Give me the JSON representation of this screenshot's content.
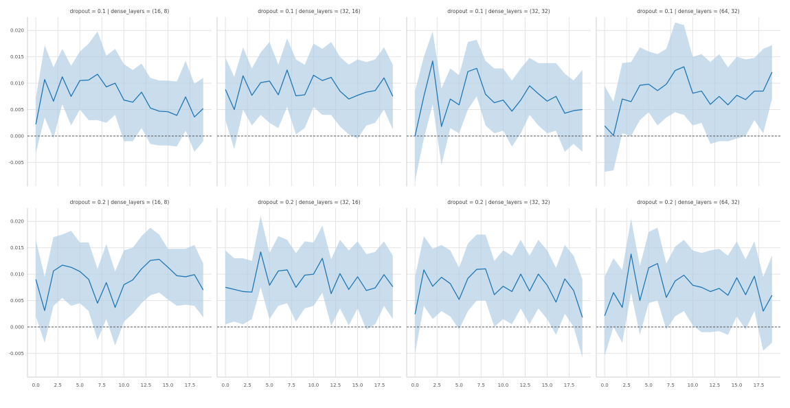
{
  "chart_data": {
    "type": "line",
    "layout": "facet-grid",
    "rows": 2,
    "cols": 4,
    "x": [
      0,
      1,
      2,
      3,
      4,
      5,
      6,
      7,
      8,
      9,
      10,
      11,
      12,
      13,
      14,
      15,
      16,
      17,
      18,
      19
    ],
    "xticks": [
      0.0,
      2.5,
      5.0,
      7.5,
      10.0,
      12.5,
      15.0,
      17.5
    ],
    "xtick_labels": [
      "0.0",
      "2.5",
      "5.0",
      "7.5",
      "10.0",
      "12.5",
      "15.0",
      "17.5"
    ],
    "yticks": [
      -0.005,
      0.0,
      0.005,
      0.01,
      0.015,
      0.02
    ],
    "ytick_labels": [
      "-0.005",
      "0.000",
      "0.005",
      "0.010",
      "0.015",
      "0.020"
    ],
    "xlim": [
      -0.95,
      19.95
    ],
    "ylim": [
      -0.0095,
      0.0225
    ],
    "grid": true,
    "reference_line": {
      "y": 0.0,
      "style": "dashed",
      "color": "#555555"
    },
    "line_color": "#1f77b4",
    "band_color": "#aecbe2",
    "panels": [
      {
        "title": "dropout = 0.1 | dense_layers = (16, 8)",
        "mean": [
          0.0022,
          0.0107,
          0.0066,
          0.0112,
          0.0075,
          0.0105,
          0.0106,
          0.0117,
          0.0093,
          0.01,
          0.0068,
          0.0064,
          0.0083,
          0.0053,
          0.0047,
          0.0046,
          0.0039,
          0.0074,
          0.0036,
          0.0052
        ],
        "lower": [
          -0.0032,
          0.0035,
          -0.0005,
          0.006,
          0.002,
          0.005,
          0.003,
          0.003,
          0.0025,
          0.004,
          -0.001,
          -0.001,
          0.0015,
          -0.0015,
          -0.0018,
          -0.0018,
          -0.002,
          0.001,
          -0.003,
          -0.001
        ],
        "upper": [
          0.0072,
          0.0172,
          0.013,
          0.0165,
          0.0133,
          0.016,
          0.0175,
          0.0198,
          0.0152,
          0.0165,
          0.0136,
          0.0125,
          0.0137,
          0.011,
          0.0105,
          0.0105,
          0.0103,
          0.0142,
          0.0099,
          0.011
        ]
      },
      {
        "title": "dropout = 0.1 | dense_layers = (32, 16)",
        "mean": [
          0.0088,
          0.005,
          0.0114,
          0.0077,
          0.0101,
          0.0104,
          0.0078,
          0.0125,
          0.0076,
          0.0078,
          0.0115,
          0.0105,
          0.0111,
          0.0085,
          0.007,
          0.0077,
          0.0083,
          0.0086,
          0.011,
          0.0075
        ],
        "lower": [
          0.003,
          -0.0025,
          0.005,
          0.002,
          0.004,
          0.0025,
          0.0015,
          0.0055,
          0.0003,
          0.0015,
          0.0055,
          0.004,
          0.004,
          0.0018,
          0.0003,
          -0.0005,
          0.002,
          0.0025,
          0.005,
          0.0012
        ],
        "upper": [
          0.0148,
          0.0112,
          0.0168,
          0.0128,
          0.0158,
          0.0178,
          0.0135,
          0.0185,
          0.0145,
          0.0135,
          0.0175,
          0.0165,
          0.0178,
          0.015,
          0.0135,
          0.0145,
          0.014,
          0.0145,
          0.0168,
          0.0135
        ]
      },
      {
        "title": "dropout = 0.1 | dense_layers = (32, 32)",
        "mean": [
          0.0,
          0.0075,
          0.0142,
          0.0018,
          0.007,
          0.0059,
          0.0122,
          0.0128,
          0.0079,
          0.0063,
          0.0068,
          0.0047,
          0.0068,
          0.0095,
          0.008,
          0.0066,
          0.0075,
          0.0043,
          0.0048,
          0.005
        ],
        "lower": [
          -0.0085,
          -0.0005,
          0.006,
          -0.0055,
          0.0015,
          0.0005,
          0.005,
          0.0075,
          0.002,
          0.0005,
          0.001,
          -0.002,
          0.0005,
          0.004,
          0.002,
          0.0005,
          0.001,
          -0.003,
          -0.0015,
          -0.003
        ],
        "upper": [
          0.0085,
          0.015,
          0.0198,
          0.009,
          0.0128,
          0.0115,
          0.0178,
          0.0182,
          0.0142,
          0.0128,
          0.0128,
          0.0105,
          0.0128,
          0.0148,
          0.0138,
          0.0138,
          0.0138,
          0.0118,
          0.0105,
          0.0125
        ]
      },
      {
        "title": "dropout = 0.1 | dense_layers = (64, 32)",
        "mean": [
          0.0019,
          0.0001,
          0.007,
          0.0065,
          0.0096,
          0.0098,
          0.0086,
          0.0098,
          0.0124,
          0.0131,
          0.0081,
          0.0085,
          0.006,
          0.0075,
          0.0059,
          0.0077,
          0.0069,
          0.0085,
          0.0085,
          0.0121
        ],
        "lower": [
          -0.0068,
          -0.0065,
          0.0005,
          0.0,
          0.003,
          0.0045,
          0.002,
          0.0035,
          0.0045,
          0.004,
          0.002,
          0.0025,
          -0.0015,
          -0.001,
          -0.001,
          -0.0005,
          0.0,
          0.003,
          0.0005,
          0.007
        ],
        "upper": [
          0.0095,
          0.0065,
          0.0138,
          0.014,
          0.0168,
          0.016,
          0.0155,
          0.0165,
          0.0215,
          0.021,
          0.015,
          0.0155,
          0.014,
          0.0155,
          0.013,
          0.015,
          0.0145,
          0.0148,
          0.0165,
          0.0172
        ]
      },
      {
        "title": "dropout = 0.2 | dense_layers = (16, 8)",
        "mean": [
          0.009,
          0.0031,
          0.0106,
          0.0117,
          0.0113,
          0.0105,
          0.009,
          0.0045,
          0.0084,
          0.0037,
          0.008,
          0.0089,
          0.011,
          0.0126,
          0.0128,
          0.0113,
          0.0097,
          0.0095,
          0.0099,
          0.007
        ],
        "lower": [
          0.002,
          -0.003,
          0.004,
          0.0055,
          0.004,
          0.0045,
          0.003,
          -0.0025,
          0.0015,
          -0.0035,
          0.001,
          0.0025,
          0.0045,
          0.006,
          0.0065,
          0.0052,
          0.004,
          0.0042,
          0.004,
          0.0018
        ],
        "upper": [
          0.0165,
          0.0095,
          0.017,
          0.0175,
          0.0182,
          0.016,
          0.016,
          0.011,
          0.0157,
          0.0105,
          0.0145,
          0.015,
          0.0172,
          0.0188,
          0.0175,
          0.0148,
          0.0148,
          0.0148,
          0.0155,
          0.012
        ]
      },
      {
        "title": "dropout = 0.2 | dense_layers = (32, 16)",
        "mean": [
          0.0075,
          0.0071,
          0.0067,
          0.0066,
          0.0142,
          0.0079,
          0.0106,
          0.0108,
          0.0075,
          0.0098,
          0.01,
          0.013,
          0.0063,
          0.0101,
          0.0071,
          0.0095,
          0.0069,
          0.0074,
          0.0099,
          0.0076
        ],
        "lower": [
          0.0005,
          0.001,
          0.0005,
          0.0015,
          0.0075,
          0.0015,
          0.004,
          0.0045,
          0.001,
          0.0035,
          0.004,
          0.0065,
          0.0002,
          0.0035,
          0.0003,
          0.0035,
          -0.0005,
          0.0005,
          0.004,
          0.0015
        ],
        "upper": [
          0.0145,
          0.013,
          0.013,
          0.0125,
          0.021,
          0.014,
          0.0172,
          0.0165,
          0.014,
          0.0162,
          0.016,
          0.0192,
          0.0128,
          0.0165,
          0.0145,
          0.0162,
          0.0138,
          0.0142,
          0.0162,
          0.0135
        ]
      },
      {
        "title": "dropout = 0.2 | dense_layers = (32, 32)",
        "mean": [
          0.0024,
          0.0108,
          0.0077,
          0.0094,
          0.0082,
          0.0052,
          0.0092,
          0.0109,
          0.011,
          0.0061,
          0.0077,
          0.0067,
          0.01,
          0.0068,
          0.01,
          0.0079,
          0.0047,
          0.0091,
          0.0069,
          0.0018
        ],
        "lower": [
          -0.005,
          0.004,
          0.0015,
          0.003,
          0.002,
          -0.0005,
          0.003,
          0.005,
          0.005,
          0.0,
          0.0015,
          0.0005,
          0.0035,
          0.0005,
          0.0035,
          0.0015,
          -0.0015,
          0.0025,
          0.0,
          -0.0058
        ],
        "upper": [
          0.0095,
          0.0172,
          0.0148,
          0.0155,
          0.0145,
          0.0112,
          0.0158,
          0.0175,
          0.0175,
          0.0125,
          0.0145,
          0.0135,
          0.0165,
          0.0135,
          0.0165,
          0.0145,
          0.0112,
          0.0155,
          0.0135,
          0.009
        ]
      },
      {
        "title": "dropout = 0.2 | dense_layers = (64, 32)",
        "mean": [
          0.0021,
          0.0065,
          0.0037,
          0.0138,
          0.005,
          0.0112,
          0.012,
          0.0056,
          0.0087,
          0.0098,
          0.0079,
          0.0075,
          0.0067,
          0.0073,
          0.006,
          0.0093,
          0.0061,
          0.0096,
          0.003,
          0.006
        ],
        "lower": [
          -0.0055,
          0.0,
          -0.003,
          0.0065,
          -0.0015,
          0.0045,
          0.005,
          -0.0005,
          0.002,
          0.003,
          0.0003,
          -0.001,
          -0.001,
          -0.0008,
          -0.0015,
          0.002,
          -0.0005,
          0.003,
          -0.0045,
          -0.003
        ],
        "upper": [
          0.0095,
          0.013,
          0.0108,
          0.0205,
          0.0115,
          0.018,
          0.0188,
          0.012,
          0.0152,
          0.0165,
          0.0145,
          0.014,
          0.0145,
          0.0148,
          0.0135,
          0.0162,
          0.0128,
          0.0162,
          0.0095,
          0.0135
        ]
      }
    ]
  }
}
